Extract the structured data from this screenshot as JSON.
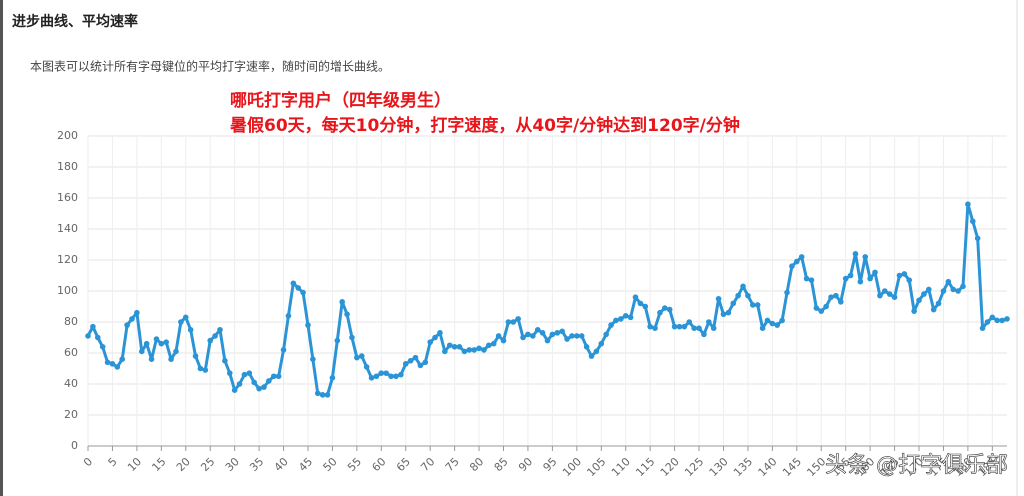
{
  "header": {
    "title": "进步曲线、平均速率",
    "description": "本图表可以统计所有字母键位的平均打字速率，随时间的增长曲线。"
  },
  "chart_data": {
    "type": "line",
    "annotations": [
      "哪吒打字用户（四年级男生）",
      "暑假60天，每天10分钟，打字速度，从40字/分钟达到120字/分钟"
    ],
    "x": [
      0,
      1,
      2,
      3,
      4,
      5,
      6,
      7,
      8,
      9,
      10,
      11,
      12,
      13,
      14,
      15,
      16,
      17,
      18,
      19,
      20,
      21,
      22,
      23,
      24,
      25,
      26,
      27,
      28,
      29,
      30,
      31,
      32,
      33,
      34,
      35,
      36,
      37,
      38,
      39,
      40,
      41,
      42,
      43,
      44,
      45,
      46,
      47,
      48,
      49,
      50,
      51,
      52,
      53,
      54,
      55,
      56,
      57,
      58,
      59,
      60,
      61,
      62,
      63,
      64,
      65,
      66,
      67,
      68,
      69,
      70,
      71,
      72,
      73,
      74,
      75,
      76,
      77,
      78,
      79,
      80,
      81,
      82,
      83,
      84,
      85,
      86,
      87,
      88,
      89,
      90,
      91,
      92,
      93,
      94,
      95,
      96,
      97,
      98,
      99,
      100,
      101,
      102,
      103,
      104,
      105,
      106,
      107,
      108,
      109,
      110,
      111,
      112,
      113,
      114,
      115,
      116,
      117,
      118,
      119,
      120,
      121,
      122,
      123,
      124,
      125,
      126,
      127,
      128,
      129,
      130,
      131,
      132,
      133,
      134,
      135,
      136,
      137,
      138,
      139,
      140,
      141,
      142,
      143,
      144,
      145,
      146,
      147,
      148,
      149,
      150,
      151,
      152,
      153,
      154,
      155,
      156,
      157,
      158,
      159,
      160,
      161,
      162,
      163,
      164,
      165,
      166,
      167,
      168,
      169,
      170,
      171,
      172,
      173,
      174,
      175,
      176,
      177,
      178,
      179,
      180,
      181,
      182,
      183,
      184,
      185,
      186,
      187,
      188
    ],
    "values": [
      71,
      77,
      70,
      64,
      54,
      53,
      51,
      56,
      78,
      82,
      86,
      61,
      66,
      56,
      69,
      66,
      67,
      56,
      61,
      80,
      83,
      75,
      58,
      50,
      49,
      68,
      71,
      75,
      55,
      47,
      36,
      40,
      46,
      47,
      41,
      37,
      38,
      42,
      45,
      45,
      62,
      84,
      105,
      102,
      99,
      78,
      56,
      34,
      33,
      33,
      44,
      68,
      93,
      85,
      70,
      57,
      58,
      51,
      44,
      45,
      47,
      47,
      45,
      45,
      46,
      53,
      55,
      57,
      52,
      54,
      67,
      70,
      73,
      61,
      65,
      64,
      64,
      61,
      62,
      62,
      63,
      62,
      65,
      66,
      71,
      68,
      80,
      80,
      82,
      70,
      72,
      71,
      75,
      73,
      68,
      72,
      73,
      74,
      69,
      71,
      71,
      71,
      64,
      58,
      61,
      66,
      72,
      78,
      81,
      82,
      84,
      83,
      96,
      92,
      90,
      77,
      76,
      86,
      89,
      88,
      77,
      77,
      77,
      80,
      76,
      76,
      72,
      80,
      76,
      95,
      85,
      86,
      92,
      97,
      103,
      97,
      91,
      91,
      76,
      81,
      79,
      78,
      81,
      99,
      116,
      119,
      122,
      108,
      107,
      89,
      87,
      90,
      96,
      97,
      93,
      108,
      110,
      124,
      106,
      122,
      108,
      112,
      97,
      100,
      98,
      96,
      110,
      111,
      107,
      87,
      94,
      98,
      101,
      88,
      92,
      100,
      106,
      101,
      100,
      103,
      156,
      145,
      134,
      76,
      80,
      83,
      81,
      81,
      82
    ],
    "color": "#2b94d6",
    "xlim": [
      0,
      188
    ],
    "xticks": [
      0,
      5,
      10,
      15,
      20,
      25,
      30,
      35,
      40,
      45,
      50,
      55,
      60,
      65,
      70,
      75,
      80,
      85,
      90,
      95,
      100,
      105,
      110,
      115,
      120,
      125,
      130,
      135,
      140,
      145,
      150,
      155,
      160,
      165,
      170,
      175,
      180,
      185
    ],
    "ylim": [
      0,
      200
    ],
    "yticks": [
      0,
      20,
      40,
      60,
      80,
      100,
      120,
      140,
      160,
      180,
      200
    ],
    "grid": true
  },
  "watermark": "头条 @打字俱乐部"
}
